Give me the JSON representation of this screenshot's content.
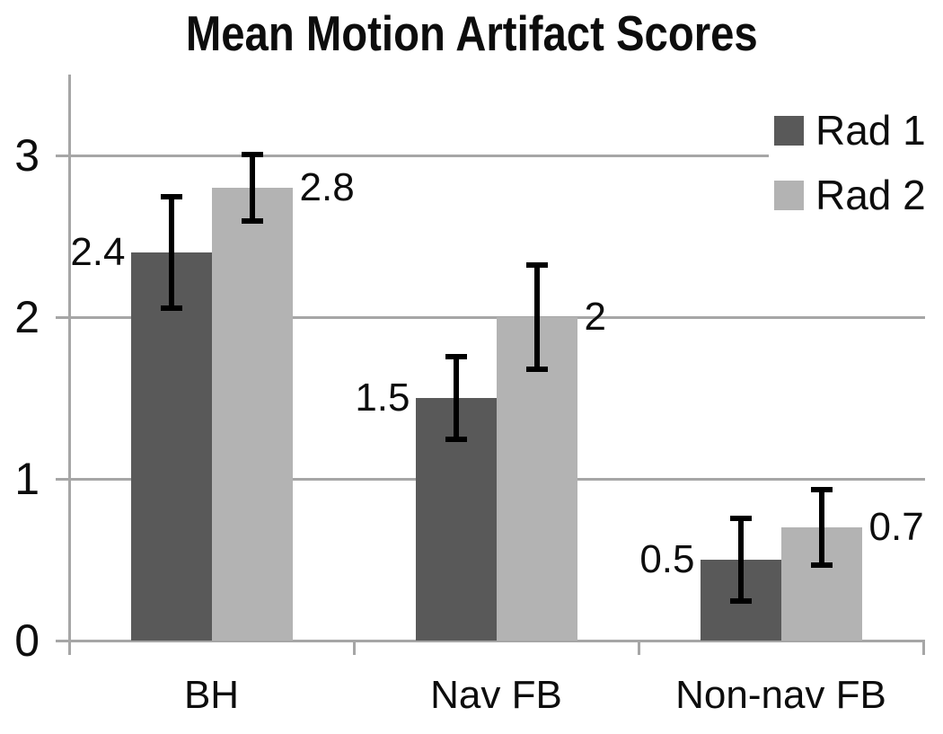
{
  "chart_data": {
    "type": "bar",
    "title": "Mean Motion Artifact Scores",
    "categories": [
      "BH",
      "Nav FB",
      "Non-nav FB"
    ],
    "series": [
      {
        "name": "Rad 1",
        "color": "#595959",
        "values": [
          2.4,
          1.5,
          0.5
        ],
        "errors": [
          0.35,
          0.26,
          0.26
        ],
        "labels": [
          "2.4",
          "1.5",
          "0.5"
        ]
      },
      {
        "name": "Rad 2",
        "color": "#b3b3b3",
        "values": [
          2.8,
          2.0,
          0.7
        ],
        "errors": [
          0.21,
          0.33,
          0.24
        ],
        "labels": [
          "2.8",
          "2",
          "0.7"
        ]
      }
    ],
    "y_ticks": [
      0,
      1,
      2,
      3
    ],
    "y_tick_labels": [
      "0",
      "1",
      "2",
      "3"
    ],
    "ylim": [
      0,
      3.5
    ],
    "grid": true,
    "legend_position": "top-right",
    "colors": {
      "grid": "#a6a6a6",
      "axis": "#a6a6a6",
      "error_bar": "#000000",
      "text": "#0d0d0d",
      "background": "#ffffff"
    }
  }
}
